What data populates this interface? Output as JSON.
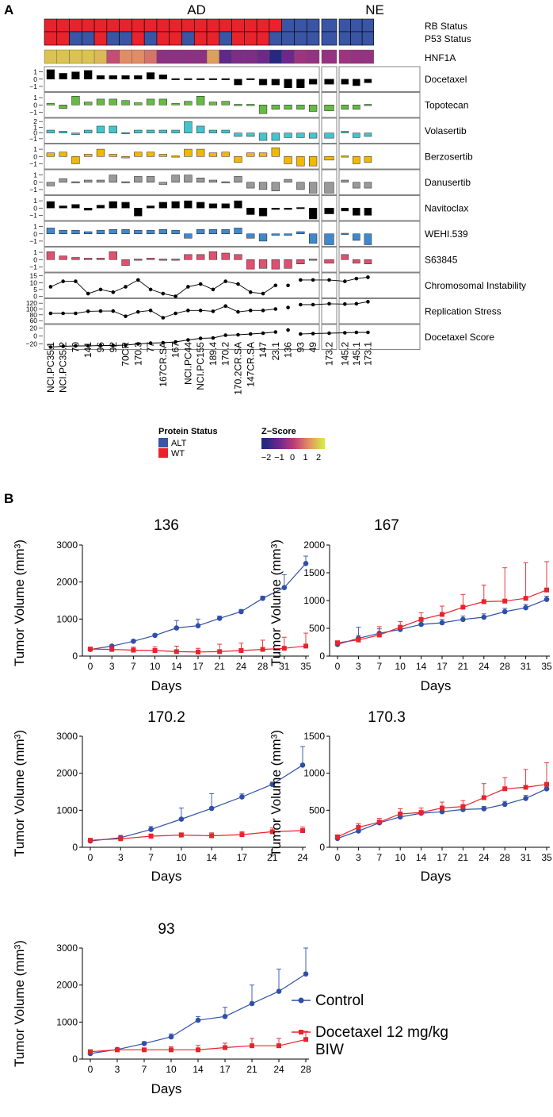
{
  "figure": {
    "panel_a_label": "A",
    "panel_b_label": "B"
  },
  "heatmap": {
    "group_labels": [
      "AD",
      "NE"
    ],
    "groups": [
      {
        "label": "AD",
        "start": 0,
        "count": 22
      },
      {
        "label": "NE",
        "start": 22,
        "count": 1
      },
      {
        "label": "NE",
        "start": 23,
        "count": 7
      }
    ],
    "samples": [
      "NCI.PC35.1",
      "NCI.PC35.2",
      "70",
      "141",
      "96",
      "92",
      "70CR",
      "170.3",
      "77",
      "167CR.SA",
      "167",
      "NCI.PC44",
      "NCI.PC155",
      "189.4",
      "170.2",
      "170.2CR.SA",
      "147CR.SA",
      "147",
      "23.1",
      "136",
      "93",
      "49",
      "173.2",
      "145.2",
      "145.1",
      "173.1"
    ],
    "row_labels": {
      "rb": "RB Status",
      "p53": "P53 Status",
      "hnf1a": "HNF1A"
    },
    "rb_status": [
      "WT",
      "WT",
      "WT",
      "WT",
      "WT",
      "WT",
      "WT",
      "WT",
      "WT",
      "WT",
      "WT",
      "WT",
      "WT",
      "WT",
      "WT",
      "WT",
      "WT",
      "WT",
      "WT",
      "ALT",
      "ALT",
      "ALT",
      "ALT",
      "ALT",
      "ALT",
      "ALT"
    ],
    "p53_status": [
      "WT",
      "WT",
      "ALT",
      "ALT",
      "WT",
      "ALT",
      "ALT",
      "WT",
      "ALT",
      "WT",
      "WT",
      "ALT",
      "WT",
      "WT",
      "ALT",
      "WT",
      "WT",
      "WT",
      "ALT",
      "ALT",
      "ALT",
      "ALT",
      "ALT",
      "ALT",
      "ALT",
      "ALT"
    ],
    "hnf1a_z": [
      1.6,
      1.6,
      1.6,
      1.6,
      1.5,
      0.2,
      1.0,
      1.0,
      0.7,
      -0.6,
      -0.6,
      -0.6,
      -0.6,
      1.2,
      -1.2,
      -0.8,
      -0.8,
      -1.0,
      -2.0,
      -1.0,
      -0.4,
      -0.5,
      -0.5,
      -0.4,
      -0.5,
      -0.5
    ],
    "drugs": [
      {
        "name": "Docetaxel",
        "color": "#000000",
        "ticks": [
          "1",
          "0",
          "−1"
        ],
        "range": [
          -1.5,
          1.5
        ],
        "values": [
          1.3,
          0.8,
          1.0,
          1.2,
          0.5,
          0.5,
          0.5,
          0.5,
          0.9,
          0.6,
          0.08,
          0.08,
          0.08,
          0.08,
          0.08,
          -0.8,
          0.08,
          -0.8,
          -0.8,
          -1.2,
          -1.2,
          -0.7,
          -0.7,
          -0.7,
          -0.9,
          -0.5
        ]
      },
      {
        "name": "Topotecan",
        "color": "#66bb44",
        "ticks": [
          "1",
          "0",
          "−1"
        ],
        "range": [
          -1.5,
          1.5
        ],
        "values": [
          0.2,
          -0.5,
          1.2,
          0.4,
          0.8,
          0.8,
          0.6,
          0.3,
          0.8,
          0.8,
          0.2,
          0.5,
          1.2,
          0.4,
          0.5,
          0.08,
          0.08,
          -1.2,
          -0.6,
          -0.6,
          -0.6,
          -0.9,
          -0.8,
          -0.6,
          -0.6,
          0.08
        ]
      },
      {
        "name": "Volasertib",
        "color": "#44c4cc",
        "ticks": [
          "2",
          "1",
          "0",
          "−1"
        ],
        "range": [
          -1.5,
          2.3
        ],
        "values": [
          0.5,
          0.3,
          -0.3,
          0.5,
          1.2,
          1.2,
          0.08,
          0.5,
          0.5,
          0.5,
          0.5,
          2.0,
          1.2,
          0.5,
          0.5,
          -0.6,
          -0.6,
          -1.3,
          -1.3,
          -0.8,
          -0.8,
          -0.9,
          -0.9,
          0.3,
          -0.8,
          -0.6
        ]
      },
      {
        "name": "Berzosertib",
        "color": "#f0b800",
        "ticks": [
          "1",
          "0",
          "−1"
        ],
        "range": [
          -1.5,
          1.5
        ],
        "values": [
          0.5,
          0.6,
          -1.0,
          0.3,
          1.0,
          0.3,
          -0.2,
          0.6,
          0.6,
          0.3,
          0.08,
          1.0,
          1.0,
          0.5,
          0.6,
          -0.8,
          0.5,
          0.5,
          1.2,
          -1.0,
          -1.3,
          -1.3,
          -0.5,
          0.08,
          -1.0,
          -0.8
        ]
      },
      {
        "name": "Danusertib",
        "color": "#999999",
        "ticks": [
          "1",
          "0",
          "−1"
        ],
        "range": [
          -1.5,
          1.5
        ],
        "values": [
          -0.5,
          0.5,
          0.08,
          0.3,
          0.3,
          1.0,
          0.08,
          0.8,
          0.8,
          -0.3,
          1.0,
          1.0,
          0.6,
          0.3,
          0.08,
          0.8,
          -0.8,
          -1.0,
          -1.2,
          0.4,
          -1.0,
          -1.5,
          -1.5,
          0.3,
          -0.8,
          -0.8
        ]
      },
      {
        "name": "Navitoclax",
        "color": "#000000",
        "ticks": [
          "1",
          "0",
          "−1"
        ],
        "range": [
          -1.5,
          1.5
        ],
        "values": [
          0.9,
          0.3,
          0.5,
          -0.3,
          0.4,
          0.9,
          0.8,
          -1.1,
          0.3,
          0.8,
          0.9,
          1.0,
          0.8,
          0.6,
          0.6,
          1.0,
          -0.9,
          -1.1,
          -0.2,
          -0.2,
          0.08,
          -1.5,
          -0.8,
          -0.4,
          -1.0,
          -1.0
        ]
      },
      {
        "name": "WEHI.539",
        "color": "#3f88d0",
        "ticks": [
          "1",
          "0",
          "−1"
        ],
        "range": [
          -1.5,
          1.5
        ],
        "values": [
          0.8,
          0.5,
          0.5,
          0.3,
          0.5,
          0.6,
          0.6,
          0.5,
          0.5,
          0.6,
          0.5,
          -0.6,
          0.6,
          0.6,
          0.6,
          0.8,
          -0.6,
          -1.0,
          -0.2,
          -0.2,
          0.3,
          -1.3,
          -1.5,
          0.08,
          -0.9,
          -1.5
        ]
      },
      {
        "name": "S63845",
        "color": "#e05070",
        "ticks": [
          "1",
          "0",
          "−1"
        ],
        "range": [
          -1.5,
          1.5
        ],
        "values": [
          1.1,
          0.5,
          0.3,
          0.2,
          0.2,
          1.1,
          -0.8,
          0.08,
          0.2,
          0.08,
          0.08,
          0.7,
          0.7,
          1.1,
          0.9,
          0.7,
          -1.3,
          -1.2,
          -1.3,
          -1.2,
          -0.6,
          0.08,
          -0.5,
          0.7,
          -0.5,
          -0.6
        ]
      }
    ],
    "scores": [
      {
        "name": "Chromosomal Instability",
        "ticks": [
          "15",
          "10",
          "5",
          "0"
        ],
        "range": [
          0,
          16
        ],
        "values": [
          7,
          11,
          11,
          2,
          5,
          3,
          7,
          12,
          5,
          2,
          0,
          7,
          9,
          5,
          11,
          9,
          3,
          2,
          8,
          null,
          12,
          12,
          12,
          11,
          13,
          14
        ]
      },
      {
        "name": "Replication Stress",
        "ticks": [
          "120",
          "100",
          "80",
          "60"
        ],
        "range": [
          55,
          130
        ],
        "values": [
          85,
          85,
          85,
          92,
          93,
          93,
          75,
          90,
          95,
          70,
          85,
          95,
          95,
          92,
          110,
          90,
          95,
          95,
          100,
          105,
          115,
          115,
          118,
          117,
          118,
          125
        ]
      },
      {
        "name": "Docetaxel Score",
        "ticks": [
          "20",
          "0",
          "−20"
        ],
        "range": [
          -30,
          25
        ],
        "values": [
          -28,
          -26,
          -25,
          -25,
          -24,
          -24,
          -23,
          -20,
          -18,
          -17,
          -15,
          -10,
          -6,
          -5,
          2,
          3,
          5,
          7,
          10,
          15,
          5,
          6,
          7,
          8,
          9,
          9
        ]
      }
    ],
    "legend": {
      "protein_status_title": "Protein Status",
      "protein_status_items": [
        {
          "label": "ALT",
          "color": "#3a55a4"
        },
        {
          "label": "WT",
          "color": "#e8232c"
        }
      ],
      "zscore_title": "Z−Score",
      "zscore_ticks": [
        "−2",
        "−1",
        "0",
        "1",
        "2"
      ]
    }
  },
  "chart_data": [
    {
      "type": "line",
      "title": "136",
      "xlabel": "Days",
      "ylabel": "Tumor Volume (mm³)",
      "ylim": [
        0,
        3000
      ],
      "yticks": [
        0,
        1000,
        2000,
        3000
      ],
      "x": [
        0,
        3,
        7,
        10,
        14,
        17,
        21,
        24,
        28,
        31,
        35
      ],
      "series": [
        {
          "name": "Control",
          "color": "#2f4fa8",
          "values": [
            180,
            270,
            400,
            560,
            760,
            820,
            1020,
            1200,
            1560,
            1850,
            2500
          ],
          "err": [
            30,
            30,
            40,
            40,
            200,
            180,
            60,
            60,
            60,
            350,
            200
          ]
        },
        {
          "name": "Docetaxel 12 mg/kg BIW",
          "color": "#e8232c",
          "values": [
            190,
            180,
            160,
            150,
            120,
            110,
            120,
            150,
            180,
            210,
            270
          ],
          "err": [
            20,
            100,
            80,
            100,
            150,
            100,
            200,
            200,
            250,
            300,
            350
          ]
        }
      ]
    },
    {
      "type": "line",
      "title": "167",
      "xlabel": "Days",
      "ylabel": "Tumor Volume (mm³)",
      "ylim": [
        0,
        2000
      ],
      "yticks": [
        0,
        500,
        1000,
        1500,
        2000
      ],
      "x": [
        0,
        3,
        7,
        10,
        14,
        17,
        21,
        24,
        28,
        31,
        35
      ],
      "series": [
        {
          "name": "Control",
          "color": "#2f4fa8",
          "values": [
            210,
            320,
            410,
            480,
            570,
            600,
            660,
            700,
            800,
            870,
            1020
          ],
          "err": [
            30,
            200,
            80,
            60,
            60,
            60,
            60,
            60,
            60,
            60,
            60
          ]
        },
        {
          "name": "Docetaxel 12 mg/kg BIW",
          "color": "#e8232c",
          "values": [
            240,
            290,
            380,
            520,
            660,
            750,
            880,
            980,
            990,
            1040,
            1190
          ],
          "err": [
            30,
            80,
            150,
            100,
            120,
            150,
            230,
            300,
            600,
            640,
            510
          ]
        }
      ]
    },
    {
      "type": "line",
      "title": "170.2",
      "xlabel": "Days",
      "ylabel": "Tumor Volume (mm³)",
      "ylim": [
        0,
        3000
      ],
      "yticks": [
        0,
        1000,
        2000,
        3000
      ],
      "x": [
        0,
        3,
        7,
        10,
        14,
        17,
        21,
        24
      ],
      "series": [
        {
          "name": "Control",
          "color": "#2f4fa8",
          "values": [
            170,
            260,
            480,
            760,
            1050,
            1360,
            1700,
            2220
          ],
          "err": [
            30,
            60,
            80,
            300,
            400,
            80,
            60,
            500
          ]
        },
        {
          "name": "Docetaxel 12 mg/kg BIW",
          "color": "#e8232c",
          "values": [
            190,
            230,
            300,
            330,
            310,
            340,
            420,
            450
          ],
          "err": [
            30,
            40,
            60,
            60,
            80,
            80,
            100,
            100
          ]
        }
      ]
    },
    {
      "type": "line",
      "title": "170.3",
      "xlabel": "Days",
      "ylabel": "Tumor Volume (mm³)",
      "ylim": [
        0,
        1500
      ],
      "yticks": [
        0,
        500,
        1000,
        1500
      ],
      "x": [
        0,
        3,
        7,
        10,
        14,
        17,
        21,
        24,
        28,
        31,
        35
      ],
      "series": [
        {
          "name": "Control",
          "color": "#2f4fa8",
          "values": [
            120,
            220,
            330,
            410,
            460,
            480,
            510,
            520,
            580,
            660,
            790
          ],
          "err": [
            20,
            40,
            30,
            40,
            30,
            30,
            30,
            30,
            40,
            40,
            40
          ]
        },
        {
          "name": "Docetaxel 12 mg/kg BIW",
          "color": "#e8232c",
          "values": [
            140,
            270,
            340,
            450,
            470,
            530,
            550,
            670,
            790,
            810,
            850
          ],
          "err": [
            20,
            50,
            50,
            70,
            60,
            80,
            80,
            190,
            150,
            240,
            290
          ]
        }
      ]
    },
    {
      "type": "line",
      "title": "93",
      "xlabel": "Days",
      "ylabel": "Tumor Volume (mm³)",
      "ylim": [
        0,
        3000
      ],
      "yticks": [
        0,
        1000,
        2000,
        3000
      ],
      "x": [
        0,
        3,
        7,
        10,
        14,
        17,
        21,
        24,
        28
      ],
      "series": [
        {
          "name": "Control",
          "color": "#2f4fa8",
          "values": [
            150,
            260,
            420,
            600,
            1050,
            1150,
            1500,
            1830,
            2300
          ],
          "err": [
            30,
            40,
            50,
            80,
            100,
            250,
            500,
            600,
            700
          ]
        },
        {
          "name": "Docetaxel 12 mg/kg BIW",
          "color": "#e8232c",
          "values": [
            200,
            250,
            250,
            250,
            250,
            310,
            360,
            360,
            530
          ],
          "err": [
            30,
            40,
            50,
            80,
            120,
            120,
            200,
            200,
            220
          ]
        }
      ]
    }
  ],
  "line_legend": {
    "items": [
      {
        "label": "Control",
        "color": "#2f4fa8"
      },
      {
        "label_line1": "Docetaxel 12 mg/kg",
        "label_line2": "BIW",
        "color": "#e8232c"
      }
    ]
  }
}
